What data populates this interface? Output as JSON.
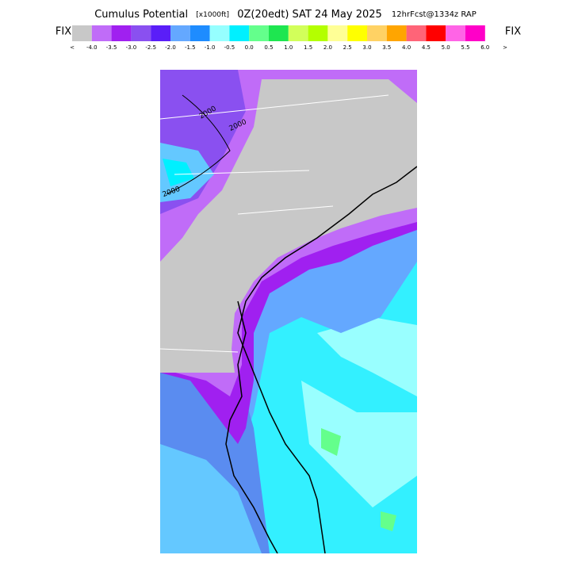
{
  "header": {
    "title": "Cumulus Potential",
    "units": "[x1000ft]",
    "valid": "0Z(20edt) SAT 24 May 2025",
    "forecast": "12hrFcst@1334z RAP"
  },
  "legend": {
    "left_label": "FIX",
    "right_label": "FIX",
    "low_arrow": "<",
    "high_arrow": ">",
    "colors": [
      "#c8c8c8",
      "#c06cf8",
      "#a020f0",
      "#8a50f0",
      "#5a1ef8",
      "#64a8ff",
      "#1e8cff",
      "#96ffff",
      "#00f0ff",
      "#64ff8c",
      "#1ee650",
      "#d2ff5a",
      "#b4ff00",
      "#ffff96",
      "#ffff00",
      "#ffd264",
      "#ffa500",
      "#ff6478",
      "#ff0000",
      "#ff64e6",
      "#ff00c8"
    ],
    "labels": [
      "-4.0",
      "-3.5",
      "-3.0",
      "-2.5",
      "-2.0",
      "-1.5",
      "-1.0",
      "-0.5",
      "0.0",
      "0.5",
      "1.0",
      "1.5",
      "2.0",
      "2.5",
      "3.0",
      "3.5",
      "4.0",
      "4.5",
      "5.0",
      "5.5",
      "6.0"
    ]
  },
  "map": {
    "contour_labels": [
      "2000",
      "2000",
      "2000"
    ]
  }
}
